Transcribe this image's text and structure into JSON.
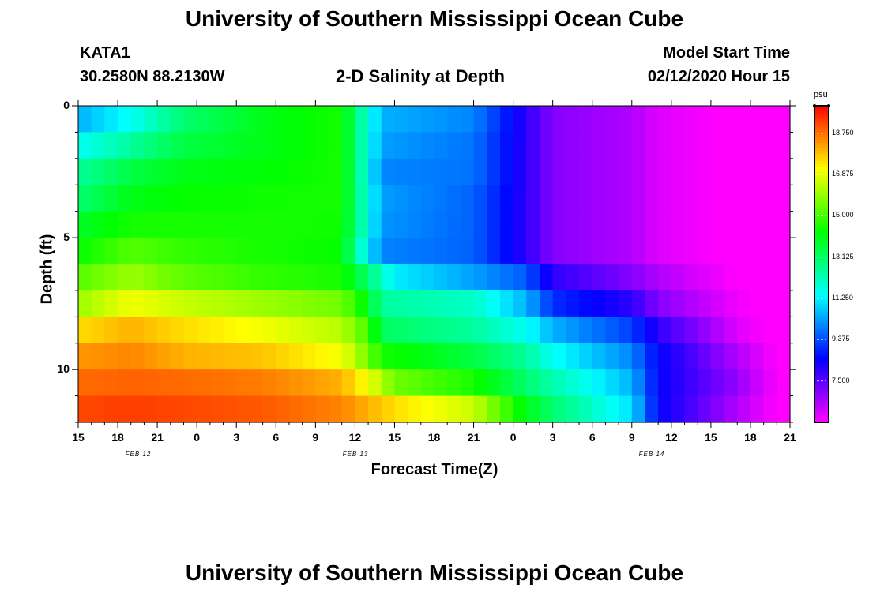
{
  "header": {
    "title": "University of Southern Mississippi Ocean Cube",
    "footer_title": "University of Southern Mississippi Ocean Cube",
    "station": "KATA1",
    "coords": "30.2580N 88.2130W",
    "plot_title": "2-D Salinity at Depth",
    "start_label": "Model Start Time",
    "start_time": "02/12/2020 Hour 15"
  },
  "chart_data": {
    "type": "heatmap",
    "title": "2-D Salinity at Depth",
    "xlabel": "Forecast Time(Z)",
    "ylabel": "Depth (ft)",
    "x_ticks": [
      "15",
      "18",
      "21",
      "0",
      "3",
      "6",
      "9",
      "12",
      "15",
      "18",
      "21",
      "0",
      "3",
      "6",
      "9",
      "12",
      "15",
      "18",
      "21"
    ],
    "date_labels": [
      {
        "text": "FEB 12",
        "x_tick_index": 4
      },
      {
        "text": "FEB 13",
        "x_tick_index": 8
      },
      {
        "text": "FEB 14",
        "x_tick_index": 9
      }
    ],
    "x_range_hours": [
      0,
      54
    ],
    "y_range_ft": [
      0,
      12
    ],
    "y_ticks": [
      0,
      5,
      10
    ],
    "layer_depths_ft": [
      0.5,
      1.5,
      2.5,
      3.5,
      4.5,
      5.5,
      6.5,
      7.5,
      8.5,
      9.5,
      10.5,
      11.5
    ],
    "salinity_profiles": [
      {
        "depth_ft": 0.5,
        "points": [
          [
            0,
            10.5
          ],
          [
            4,
            11.5
          ],
          [
            8,
            13
          ],
          [
            14,
            14
          ],
          [
            20,
            14.5
          ],
          [
            21,
            13
          ],
          [
            23,
            10.5
          ],
          [
            30,
            10
          ],
          [
            34,
            8
          ],
          [
            36,
            7
          ],
          [
            42,
            6.5
          ],
          [
            44,
            6
          ],
          [
            50,
            5.5
          ],
          [
            54,
            5.3
          ]
        ]
      },
      {
        "depth_ft": 1.5,
        "points": [
          [
            0,
            11.5
          ],
          [
            4,
            12.5
          ],
          [
            8,
            13.5
          ],
          [
            14,
            14
          ],
          [
            20,
            14.5
          ],
          [
            21,
            13
          ],
          [
            23,
            10.3
          ],
          [
            30,
            9.8
          ],
          [
            34,
            8
          ],
          [
            36,
            7
          ],
          [
            42,
            6.5
          ],
          [
            44,
            6
          ],
          [
            50,
            5.5
          ],
          [
            54,
            5.3
          ]
        ]
      },
      {
        "depth_ft": 2.5,
        "points": [
          [
            0,
            12.5
          ],
          [
            4,
            13.5
          ],
          [
            8,
            14
          ],
          [
            14,
            14.2
          ],
          [
            20,
            14.5
          ],
          [
            21,
            13
          ],
          [
            23,
            10
          ],
          [
            30,
            9.8
          ],
          [
            34,
            8
          ],
          [
            36,
            7
          ],
          [
            42,
            6.5
          ],
          [
            44,
            6
          ],
          [
            50,
            5.5
          ],
          [
            54,
            5.3
          ]
        ]
      },
      {
        "depth_ft": 3.5,
        "points": [
          [
            0,
            13
          ],
          [
            4,
            14
          ],
          [
            8,
            14.3
          ],
          [
            14,
            14.4
          ],
          [
            20,
            14.5
          ],
          [
            21,
            13
          ],
          [
            23,
            10.3
          ],
          [
            30,
            9.6
          ],
          [
            34,
            8
          ],
          [
            36,
            7
          ],
          [
            42,
            6.5
          ],
          [
            44,
            6
          ],
          [
            50,
            5.5
          ],
          [
            54,
            5.3
          ]
        ]
      },
      {
        "depth_ft": 4.5,
        "points": [
          [
            0,
            13.8
          ],
          [
            4,
            14.5
          ],
          [
            8,
            14.5
          ],
          [
            14,
            14.5
          ],
          [
            20,
            14.4
          ],
          [
            21,
            13
          ],
          [
            23,
            10.2
          ],
          [
            30,
            9.6
          ],
          [
            34,
            8
          ],
          [
            36,
            7
          ],
          [
            42,
            6.5
          ],
          [
            44,
            6
          ],
          [
            50,
            5.5
          ],
          [
            54,
            5.3
          ]
        ]
      },
      {
        "depth_ft": 5.5,
        "points": [
          [
            0,
            14.3
          ],
          [
            4,
            15.2
          ],
          [
            8,
            14.8
          ],
          [
            14,
            14.5
          ],
          [
            20,
            14.3
          ],
          [
            21,
            12.5
          ],
          [
            23,
            10
          ],
          [
            30,
            9.6
          ],
          [
            34,
            8
          ],
          [
            36,
            7
          ],
          [
            42,
            6.5
          ],
          [
            44,
            6
          ],
          [
            50,
            5.5
          ],
          [
            54,
            5.3
          ]
        ]
      },
      {
        "depth_ft": 6.5,
        "points": [
          [
            0,
            15.2
          ],
          [
            4,
            16
          ],
          [
            8,
            15.3
          ],
          [
            14,
            14.8
          ],
          [
            20,
            14.5
          ],
          [
            22,
            13
          ],
          [
            24,
            11.2
          ],
          [
            30,
            10.3
          ],
          [
            34,
            9.5
          ],
          [
            36,
            8
          ],
          [
            42,
            7
          ],
          [
            44,
            6.5
          ],
          [
            50,
            5.6
          ],
          [
            54,
            5.3
          ]
        ]
      },
      {
        "depth_ft": 7.5,
        "points": [
          [
            0,
            16
          ],
          [
            4,
            17
          ],
          [
            8,
            16.5
          ],
          [
            14,
            16
          ],
          [
            20,
            15.5
          ],
          [
            22,
            14
          ],
          [
            23,
            12.5
          ],
          [
            30,
            12
          ],
          [
            34,
            10.5
          ],
          [
            36,
            9
          ],
          [
            42,
            8
          ],
          [
            44,
            7
          ],
          [
            50,
            5.8
          ],
          [
            54,
            5.3
          ]
        ]
      },
      {
        "depth_ft": 8.5,
        "points": [
          [
            0,
            17.5
          ],
          [
            4,
            18
          ],
          [
            8,
            17.5
          ],
          [
            14,
            17
          ],
          [
            20,
            16.3
          ],
          [
            22,
            15
          ],
          [
            23,
            13.2
          ],
          [
            30,
            12.5
          ],
          [
            34,
            11.5
          ],
          [
            36,
            10.5
          ],
          [
            42,
            9.2
          ],
          [
            44,
            8
          ],
          [
            50,
            6
          ],
          [
            54,
            5.3
          ]
        ]
      },
      {
        "depth_ft": 9.5,
        "points": [
          [
            0,
            18.3
          ],
          [
            4,
            18.5
          ],
          [
            8,
            18
          ],
          [
            14,
            17.8
          ],
          [
            20,
            17
          ],
          [
            22,
            15.5
          ],
          [
            23,
            14.5
          ],
          [
            30,
            13.5
          ],
          [
            34,
            12.5
          ],
          [
            36,
            11.5
          ],
          [
            42,
            10
          ],
          [
            44,
            8.5
          ],
          [
            50,
            6.5
          ],
          [
            54,
            5.3
          ]
        ]
      },
      {
        "depth_ft": 10.5,
        "points": [
          [
            0,
            18.8
          ],
          [
            4,
            18.9
          ],
          [
            8,
            18.8
          ],
          [
            14,
            18.6
          ],
          [
            20,
            18
          ],
          [
            22,
            17
          ],
          [
            24,
            15.5
          ],
          [
            30,
            14.5
          ],
          [
            34,
            13
          ],
          [
            36,
            12.3
          ],
          [
            42,
            10.5
          ],
          [
            44,
            8.5
          ],
          [
            50,
            6.8
          ],
          [
            54,
            5.3
          ]
        ]
      },
      {
        "depth_ft": 11.5,
        "points": [
          [
            0,
            19.2
          ],
          [
            4,
            19.3
          ],
          [
            8,
            19.2
          ],
          [
            14,
            19
          ],
          [
            20,
            18.5
          ],
          [
            22,
            18
          ],
          [
            24,
            17.5
          ],
          [
            30,
            16.5
          ],
          [
            34,
            14
          ],
          [
            36,
            13
          ],
          [
            42,
            11
          ],
          [
            44,
            8.5
          ],
          [
            50,
            6.5
          ],
          [
            54,
            5.3
          ]
        ]
      }
    ],
    "colorbar": {
      "unit": "psu",
      "min": 5.625,
      "max": 20.0,
      "labels": [
        "18.750",
        "16.875",
        "15.000",
        "13.125",
        "11.250",
        "9.375",
        "7.500"
      ]
    }
  }
}
